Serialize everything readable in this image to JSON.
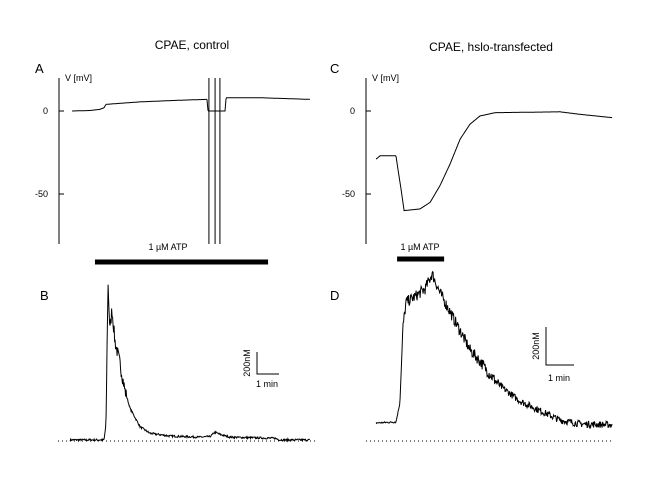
{
  "chart_data": [
    {
      "id": "A",
      "type": "line",
      "panel_label": "A",
      "title": "CPAE, control",
      "ylabel": "V [mV]",
      "yticks": [
        0,
        -50
      ],
      "ytick_labels": [
        "0",
        "-50"
      ],
      "ylim": [
        -80,
        20
      ],
      "xunit": "min",
      "xlim": [
        0,
        11.7
      ],
      "points": [
        [
          0.64,
          0
        ],
        [
          1.45,
          0.3
        ],
        [
          1.91,
          1
        ],
        [
          2.09,
          2
        ],
        [
          2.18,
          4
        ],
        [
          3.73,
          5.5
        ],
        [
          5.55,
          6.5
        ],
        [
          6.77,
          7
        ],
        [
          6.82,
          0
        ],
        [
          7.59,
          0
        ],
        [
          7.64,
          8
        ],
        [
          9.18,
          8
        ],
        [
          11.45,
          7
        ]
      ],
      "spikes_t": [
        6.86,
        7.14,
        7.36
      ],
      "stimulus": {
        "label": "1 µM ATP",
        "start": 1.68,
        "end": 9.55
      }
    },
    {
      "id": "B",
      "type": "line",
      "panel_label": "B",
      "yunit": "nM",
      "xunit": "min",
      "xlim": [
        0,
        11.7
      ],
      "baseline": 0,
      "noise_nM": 120,
      "noise_range": [
        2.2,
        3.1
      ],
      "points": [
        [
          0.55,
          10
        ],
        [
          2.09,
          10
        ],
        [
          2.18,
          150
        ],
        [
          2.27,
          1440
        ],
        [
          2.36,
          1000
        ],
        [
          2.45,
          1200
        ],
        [
          2.59,
          900
        ],
        [
          2.82,
          700
        ],
        [
          3.05,
          450
        ],
        [
          3.27,
          300
        ],
        [
          3.73,
          130
        ],
        [
          4.18,
          70
        ],
        [
          5.09,
          45
        ],
        [
          6.45,
          35
        ],
        [
          6.91,
          40
        ],
        [
          7.14,
          80
        ],
        [
          7.36,
          60
        ],
        [
          7.82,
          35
        ],
        [
          8.73,
          30
        ],
        [
          9.86,
          25
        ],
        [
          10.09,
          10
        ],
        [
          11.45,
          10
        ]
      ],
      "scalebar": {
        "y_label": "200nM",
        "y_value": 200,
        "x_label": "1 min",
        "x_value": 1
      }
    },
    {
      "id": "C",
      "type": "line",
      "panel_label": "C",
      "title": "CPAE, hslo-transfected",
      "ylabel": "V [mV]",
      "yticks": [
        0,
        -50
      ],
      "ytick_labels": [
        "0",
        "-50"
      ],
      "ylim": [
        -80,
        20
      ],
      "xunit": "min",
      "xlim": [
        0,
        8.9
      ],
      "points": [
        [
          0.36,
          -29
        ],
        [
          0.5,
          -27
        ],
        [
          1.07,
          -27
        ],
        [
          1.14,
          -35
        ],
        [
          1.25,
          -47
        ],
        [
          1.36,
          -60
        ],
        [
          1.93,
          -59
        ],
        [
          2.29,
          -55
        ],
        [
          2.64,
          -45
        ],
        [
          3.0,
          -32
        ],
        [
          3.36,
          -17
        ],
        [
          3.71,
          -8
        ],
        [
          4.07,
          -3
        ],
        [
          4.61,
          -1
        ],
        [
          6.93,
          -0.5
        ],
        [
          7.64,
          -2
        ],
        [
          8.79,
          -4
        ]
      ],
      "stimulus": {
        "label": "1 µM ATP",
        "start": 1.11,
        "end": 2.79
      }
    },
    {
      "id": "D",
      "type": "line",
      "panel_label": "D",
      "yunit": "nM",
      "xunit": "min",
      "xlim": [
        0,
        8.9
      ],
      "baseline": 0,
      "noise_nM": 60,
      "noise_range": [
        1.3,
        8.8
      ],
      "points": [
        [
          0.36,
          95
        ],
        [
          1.07,
          100
        ],
        [
          1.21,
          200
        ],
        [
          1.32,
          600
        ],
        [
          1.43,
          730
        ],
        [
          1.75,
          760
        ],
        [
          2.11,
          800
        ],
        [
          2.36,
          880
        ],
        [
          2.64,
          780
        ],
        [
          3.0,
          680
        ],
        [
          3.36,
          580
        ],
        [
          3.71,
          480
        ],
        [
          4.07,
          420
        ],
        [
          4.43,
          350
        ],
        [
          4.79,
          290
        ],
        [
          5.5,
          210
        ],
        [
          6.21,
          160
        ],
        [
          6.93,
          110
        ],
        [
          7.64,
          90
        ],
        [
          8.79,
          85
        ]
      ],
      "scalebar": {
        "y_label": "200nM",
        "y_value": 200,
        "x_label": "1 min",
        "x_value": 1
      }
    }
  ]
}
